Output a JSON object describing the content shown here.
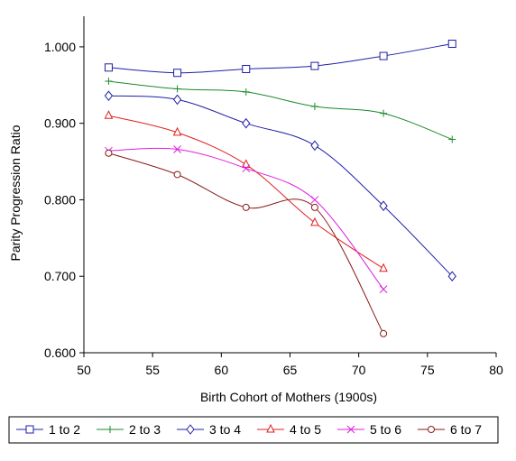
{
  "chart_data": {
    "type": "line",
    "title": "",
    "xlabel": "Birth Cohort of Mothers (1900s)",
    "ylabel": "Parity Progression Ratio",
    "xlim": [
      50,
      80
    ],
    "ylim": [
      0.6,
      1.04
    ],
    "x_ticks": [
      "50",
      "55",
      "60",
      "65",
      "70",
      "75",
      "80"
    ],
    "y_ticks": [
      "0.600",
      "0.700",
      "0.800",
      "0.900",
      "1.000"
    ],
    "grid": false,
    "legend_position": "bottom",
    "series": [
      {
        "name": "1 to 2",
        "color": "#1f1fa6",
        "marker": "square",
        "x": [
          51.8,
          56.8,
          61.8,
          66.8,
          71.8,
          76.8
        ],
        "values": [
          0.973,
          0.966,
          0.971,
          0.975,
          0.988,
          1.004
        ]
      },
      {
        "name": "2 to 3",
        "color": "#1a8a2a",
        "marker": "plus",
        "x": [
          51.8,
          56.8,
          61.8,
          66.8,
          71.8,
          76.8
        ],
        "values": [
          0.955,
          0.945,
          0.941,
          0.922,
          0.913,
          0.879
        ]
      },
      {
        "name": "3 to 4",
        "color": "#1f1fa6",
        "marker": "diamond",
        "x": [
          51.8,
          56.8,
          61.8,
          66.8,
          71.8,
          76.8
        ],
        "values": [
          0.936,
          0.931,
          0.9,
          0.871,
          0.792,
          0.7
        ]
      },
      {
        "name": "4 to 5",
        "color": "#e0201e",
        "marker": "triangle",
        "x": [
          51.8,
          56.8,
          61.8,
          66.8,
          71.8
        ],
        "values": [
          0.91,
          0.888,
          0.846,
          0.77,
          0.71
        ]
      },
      {
        "name": "5 to 6",
        "color": "#e01ee0",
        "marker": "x",
        "x": [
          51.8,
          56.8,
          61.8,
          66.8,
          71.8
        ],
        "values": [
          0.864,
          0.866,
          0.841,
          0.8,
          0.683
        ]
      },
      {
        "name": "6 to 7",
        "color": "#8b1a1a",
        "marker": "circle",
        "x": [
          51.8,
          56.8,
          61.8,
          66.8,
          71.8
        ],
        "values": [
          0.861,
          0.833,
          0.79,
          0.79,
          0.625
        ]
      }
    ]
  }
}
